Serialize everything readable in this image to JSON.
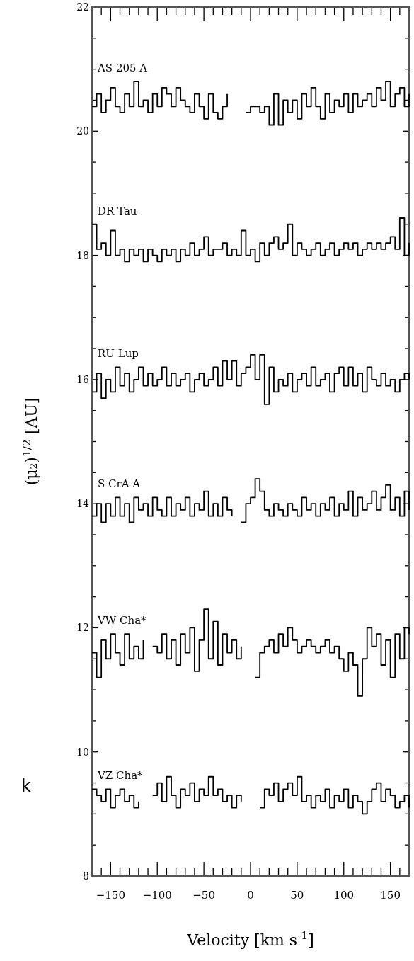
{
  "chart_data": {
    "type": "step",
    "xlabel": "Velocity [km s$^{-1}$]",
    "ylabel": "(μ₂)$^{1/2}$ [AU]",
    "annotations": [
      "k"
    ],
    "xlim": [
      -170,
      170
    ],
    "ylim": [
      8,
      22
    ],
    "xticks": [
      {
        "value": -170,
        "label": null
      },
      {
        "value": -160,
        "label": null
      },
      {
        "value": -150,
        "label": "−150"
      },
      {
        "value": -140,
        "label": null
      },
      {
        "value": -130,
        "label": null
      },
      {
        "value": -120,
        "label": null
      },
      {
        "value": -110,
        "label": null
      },
      {
        "value": -100,
        "label": "−100"
      },
      {
        "value": -90,
        "label": null
      },
      {
        "value": -80,
        "label": null
      },
      {
        "value": -70,
        "label": null
      },
      {
        "value": -60,
        "label": null
      },
      {
        "value": -50,
        "label": "−50"
      },
      {
        "value": -40,
        "label": null
      },
      {
        "value": -30,
        "label": null
      },
      {
        "value": -20,
        "label": null
      },
      {
        "value": -10,
        "label": null
      },
      0,
      {
        "value": 10,
        "label": null
      },
      {
        "value": 20,
        "label": null
      },
      {
        "value": 30,
        "label": null
      },
      {
        "value": 40,
        "label": null
      },
      50,
      {
        "value": 60,
        "label": null
      },
      {
        "value": 70,
        "label": null
      },
      {
        "value": 80,
        "label": null
      },
      {
        "value": 90,
        "label": null
      },
      100,
      {
        "value": 110,
        "label": null
      },
      {
        "value": 120,
        "label": null
      },
      {
        "value": 130,
        "label": null
      },
      {
        "value": 140,
        "label": null
      },
      150,
      {
        "value": 160,
        "label": null
      },
      {
        "value": 170,
        "label": null
      }
    ],
    "yticks": [
      8,
      {
        "value": 8.5,
        "label": null
      },
      {
        "value": 9,
        "label": null
      },
      {
        "value": 9.5,
        "label": null
      },
      10,
      {
        "value": 10.5,
        "label": null
      },
      {
        "value": 11,
        "label": null
      },
      {
        "value": 11.5,
        "label": null
      },
      12,
      {
        "value": 12.5,
        "label": null
      },
      {
        "value": 13,
        "label": null
      },
      {
        "value": 13.5,
        "label": null
      },
      14,
      {
        "value": 14.5,
        "label": null
      },
      {
        "value": 15,
        "label": null
      },
      {
        "value": 15.5,
        "label": null
      },
      16,
      {
        "value": 16.5,
        "label": null
      },
      {
        "value": 17,
        "label": null
      },
      {
        "value": 17.5,
        "label": null
      },
      18,
      {
        "value": 18.5,
        "label": null
      },
      {
        "value": 19,
        "label": null
      },
      {
        "value": 19.5,
        "label": null
      },
      20,
      {
        "value": 20.5,
        "label": null
      },
      {
        "value": 21,
        "label": null
      },
      {
        "value": 21.5,
        "label": null
      },
      22
    ],
    "x": [
      -170,
      -165,
      -160,
      -155,
      -150,
      -145,
      -140,
      -135,
      -130,
      -125,
      -120,
      -115,
      -110,
      -105,
      -100,
      -95,
      -90,
      -85,
      -80,
      -75,
      -70,
      -65,
      -60,
      -55,
      -50,
      -45,
      -40,
      -35,
      -30,
      -25,
      -20,
      -15,
      -10,
      -5,
      0,
      5,
      10,
      15,
      20,
      25,
      30,
      35,
      40,
      45,
      50,
      55,
      60,
      65,
      70,
      75,
      80,
      85,
      90,
      95,
      100,
      105,
      110,
      115,
      120,
      125,
      130,
      135,
      140,
      145,
      150,
      155,
      160,
      165,
      170
    ],
    "series": [
      {
        "name": "AS 205 A",
        "color": "#000000",
        "values": [
          20.4,
          20.6,
          20.3,
          20.5,
          20.7,
          20.4,
          20.3,
          20.6,
          20.4,
          20.8,
          20.4,
          20.5,
          20.3,
          20.6,
          20.4,
          20.7,
          20.6,
          20.4,
          20.7,
          20.5,
          20.4,
          20.3,
          20.6,
          20.4,
          20.2,
          20.6,
          20.3,
          20.2,
          20.4,
          20.6,
          null,
          null,
          null,
          20.3,
          20.4,
          20.4,
          20.3,
          20.4,
          20.1,
          20.6,
          20.1,
          20.5,
          20.3,
          20.5,
          20.2,
          20.6,
          20.4,
          20.7,
          20.4,
          20.2,
          20.6,
          20.3,
          20.5,
          20.4,
          20.6,
          20.3,
          20.6,
          20.4,
          20.5,
          20.6,
          20.4,
          20.7,
          20.5,
          20.8,
          20.4,
          20.6,
          20.7,
          20.4,
          20.6
        ]
      },
      {
        "name": "DR Tau",
        "color": "#000000",
        "values": [
          18.5,
          18.1,
          18.2,
          18.0,
          18.4,
          18.0,
          18.1,
          17.9,
          18.1,
          18.0,
          18.1,
          17.9,
          18.1,
          18.0,
          17.9,
          18.1,
          18.0,
          18.1,
          17.9,
          18.1,
          18.0,
          18.2,
          18.0,
          18.1,
          18.3,
          18.0,
          18.1,
          18.1,
          18.2,
          18.0,
          18.1,
          18.0,
          18.4,
          18.0,
          18.1,
          17.9,
          18.2,
          18.0,
          18.2,
          18.3,
          18.1,
          18.2,
          18.5,
          18.0,
          18.2,
          18.1,
          18.0,
          18.1,
          18.2,
          18.0,
          18.1,
          18.2,
          18.0,
          18.1,
          18.2,
          18.1,
          18.2,
          18.0,
          18.1,
          18.2,
          18.1,
          18.2,
          18.1,
          18.2,
          18.3,
          18.1,
          18.6,
          18.0,
          18.2
        ]
      },
      {
        "name": "RU Lup",
        "color": "#000000",
        "values": [
          15.8,
          16.1,
          15.7,
          16.0,
          15.8,
          16.2,
          15.9,
          16.1,
          15.8,
          16.0,
          16.2,
          15.9,
          16.1,
          15.9,
          16.0,
          16.2,
          15.9,
          16.1,
          15.9,
          16.0,
          16.1,
          15.8,
          16.0,
          16.1,
          15.9,
          16.0,
          16.2,
          15.9,
          16.3,
          16.0,
          16.3,
          15.9,
          16.1,
          16.2,
          16.4,
          16.0,
          16.4,
          15.6,
          16.2,
          15.8,
          16.0,
          15.9,
          16.1,
          15.8,
          16.0,
          16.1,
          15.9,
          16.2,
          15.9,
          16.0,
          16.1,
          15.8,
          16.1,
          16.2,
          15.9,
          16.2,
          15.9,
          16.1,
          15.8,
          16.2,
          16.0,
          15.9,
          16.1,
          15.9,
          16.0,
          15.8,
          16.0,
          16.1,
          16.0
        ]
      },
      {
        "name": "S CrA A",
        "color": "#000000",
        "values": [
          13.8,
          14.0,
          13.7,
          14.0,
          13.8,
          14.1,
          13.8,
          14.0,
          13.7,
          14.1,
          13.9,
          14.0,
          13.8,
          14.1,
          13.9,
          13.8,
          14.1,
          13.8,
          14.0,
          13.9,
          14.1,
          13.8,
          14.0,
          13.9,
          14.2,
          13.8,
          14.0,
          13.8,
          14.1,
          13.9,
          13.8,
          null,
          13.7,
          14.0,
          14.1,
          14.4,
          14.2,
          13.9,
          13.8,
          14.0,
          13.9,
          13.8,
          14.0,
          13.9,
          13.8,
          14.1,
          13.9,
          14.0,
          13.8,
          14.0,
          13.9,
          14.1,
          13.8,
          14.0,
          13.9,
          14.2,
          13.8,
          14.1,
          13.9,
          14.0,
          14.2,
          13.9,
          14.1,
          14.3,
          13.9,
          14.1,
          13.8,
          14.2,
          13.9
        ]
      },
      {
        "name": "VW Cha*",
        "color": "#000000",
        "values": [
          11.6,
          11.2,
          11.8,
          11.5,
          11.9,
          11.6,
          11.4,
          11.9,
          11.5,
          11.7,
          11.5,
          11.8,
          null,
          11.7,
          11.6,
          11.9,
          11.5,
          11.8,
          11.4,
          11.9,
          11.6,
          12.0,
          11.3,
          11.8,
          12.3,
          11.5,
          12.1,
          11.4,
          11.9,
          11.6,
          11.8,
          11.5,
          11.7,
          null,
          null,
          11.2,
          11.6,
          11.7,
          11.8,
          11.6,
          11.9,
          11.7,
          12.0,
          11.8,
          11.6,
          11.7,
          11.8,
          11.7,
          11.6,
          11.7,
          11.8,
          11.6,
          11.7,
          11.5,
          11.3,
          11.6,
          11.4,
          10.9,
          11.5,
          12.0,
          11.7,
          11.9,
          11.4,
          11.8,
          11.2,
          11.9,
          11.5,
          12.0,
          11.9
        ]
      },
      {
        "name": "VZ Cha*",
        "color": "#000000",
        "values": [
          9.4,
          9.3,
          9.2,
          9.4,
          9.1,
          9.3,
          9.4,
          9.2,
          9.3,
          9.1,
          9.2,
          null,
          null,
          9.3,
          9.5,
          9.2,
          9.6,
          9.3,
          9.1,
          9.4,
          9.3,
          9.5,
          9.2,
          9.4,
          9.3,
          9.6,
          9.3,
          9.4,
          9.2,
          9.3,
          9.1,
          9.3,
          9.2,
          null,
          null,
          null,
          9.1,
          9.4,
          9.3,
          9.5,
          9.2,
          9.4,
          9.5,
          9.3,
          9.6,
          9.2,
          9.3,
          9.1,
          9.3,
          9.2,
          9.4,
          9.1,
          9.3,
          9.2,
          9.4,
          9.1,
          9.3,
          9.2,
          9.0,
          9.2,
          9.4,
          9.5,
          9.2,
          9.4,
          9.3,
          9.1,
          9.2,
          9.3,
          9.1
        ]
      }
    ],
    "grid": false,
    "marker": "none",
    "line_style": "solid"
  }
}
